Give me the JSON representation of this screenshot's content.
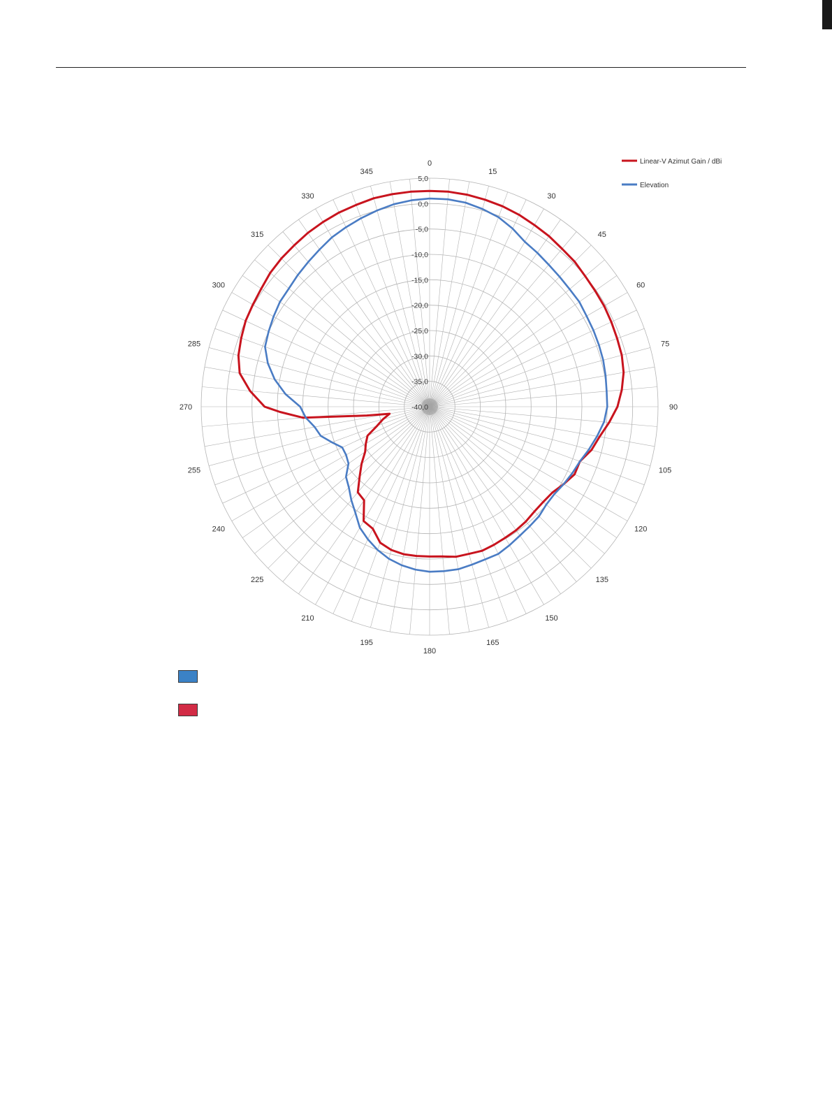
{
  "chart_data": {
    "type": "polar-line",
    "angle_unit": "degrees",
    "angle_ticks": [
      0,
      15,
      30,
      45,
      60,
      75,
      90,
      105,
      120,
      135,
      150,
      165,
      180,
      195,
      210,
      225,
      240,
      255,
      270,
      285,
      300,
      315,
      330,
      345
    ],
    "radial_ticks": [
      "5,0",
      "0,0",
      "-5,0",
      "-10,0",
      "-15,0",
      "-20,0",
      "-25,0",
      "-30,0",
      "-35,0",
      "-40,0"
    ],
    "rlim": [
      -40,
      5
    ],
    "grid": true,
    "legend_position": "top-right",
    "series": [
      {
        "name": "Linear-V Azimut Gain / dBi",
        "color": "#c8141e",
        "angles": [
          0,
          5,
          10,
          15,
          20,
          25,
          30,
          35,
          40,
          45,
          50,
          55,
          60,
          65,
          70,
          75,
          80,
          85,
          90,
          95,
          100,
          105,
          110,
          115,
          120,
          125,
          130,
          135,
          140,
          145,
          150,
          155,
          160,
          165,
          170,
          175,
          180,
          185,
          190,
          195,
          200,
          205,
          210,
          215,
          220,
          225,
          230,
          235,
          240,
          245,
          250,
          255,
          260,
          262,
          265,
          268,
          270,
          275,
          280,
          285,
          290,
          295,
          300,
          305,
          310,
          315,
          320,
          325,
          330,
          335,
          340,
          345,
          350,
          355
        ],
        "values": [
          2.5,
          2.5,
          2.4,
          2.2,
          2.0,
          1.7,
          1.3,
          1.0,
          0.6,
          0.4,
          0.0,
          -0.2,
          -0.3,
          -0.5,
          -0.7,
          -0.8,
          -1.2,
          -2.0,
          -3.0,
          -4.5,
          -6.0,
          -7.0,
          -8.5,
          -8.5,
          -9.5,
          -10.5,
          -10.8,
          -10.8,
          -10.5,
          -10.3,
          -10.2,
          -10.0,
          -9.8,
          -10.0,
          -10.0,
          -10.4,
          -10.5,
          -10.5,
          -10.5,
          -10.8,
          -11.5,
          -13.5,
          -14.0,
          -17.5,
          -18.0,
          -20.5,
          -22.5,
          -24.5,
          -25.5,
          -26.5,
          -29.0,
          -30.5,
          -32.0,
          -27.5,
          -15.0,
          -10.5,
          -7.5,
          -4.5,
          -2.0,
          -1.0,
          -0.5,
          0.0,
          0.2,
          0.5,
          1.0,
          1.3,
          1.5,
          1.8,
          2.0,
          2.2,
          2.3,
          2.5,
          2.5,
          2.5
        ]
      },
      {
        "name": "Elevation",
        "color": "#4a7cc4",
        "angles": [
          0,
          5,
          10,
          15,
          20,
          25,
          30,
          35,
          40,
          45,
          50,
          55,
          60,
          65,
          70,
          75,
          80,
          85,
          90,
          95,
          100,
          105,
          110,
          115,
          120,
          125,
          130,
          135,
          140,
          145,
          150,
          155,
          160,
          165,
          170,
          175,
          180,
          185,
          190,
          195,
          200,
          205,
          210,
          215,
          220,
          225,
          230,
          235,
          240,
          245,
          250,
          255,
          260,
          265,
          270,
          275,
          280,
          285,
          290,
          295,
          300,
          305,
          310,
          315,
          320,
          325,
          330,
          335,
          340,
          345,
          350,
          355
        ],
        "values": [
          1.0,
          1.0,
          0.8,
          0.3,
          -0.3,
          -1.3,
          -2.5,
          -3.0,
          -3.5,
          -3.8,
          -4.0,
          -4.0,
          -4.3,
          -4.4,
          -4.5,
          -4.6,
          -4.8,
          -5.0,
          -5.0,
          -5.5,
          -6.5,
          -7.5,
          -8.5,
          -9.0,
          -9.5,
          -10.0,
          -10.0,
          -9.5,
          -9.3,
          -9.0,
          -8.5,
          -8.0,
          -8.0,
          -7.8,
          -7.5,
          -7.5,
          -7.5,
          -7.8,
          -8.3,
          -9.0,
          -10.0,
          -11.2,
          -12.5,
          -14.5,
          -16.0,
          -17.5,
          -18.5,
          -20.5,
          -21.0,
          -21.0,
          -19.5,
          -17.8,
          -17.0,
          -15.5,
          -14.5,
          -11.5,
          -9.0,
          -7.0,
          -5.5,
          -5.0,
          -4.5,
          -4.0,
          -3.8,
          -3.3,
          -2.8,
          -2.2,
          -1.5,
          -1.0,
          -0.5,
          0.0,
          0.5,
          0.8
        ]
      }
    ]
  },
  "legend_swatches": [
    {
      "color": "#3b82c6"
    },
    {
      "color": "#d22b45"
    }
  ]
}
